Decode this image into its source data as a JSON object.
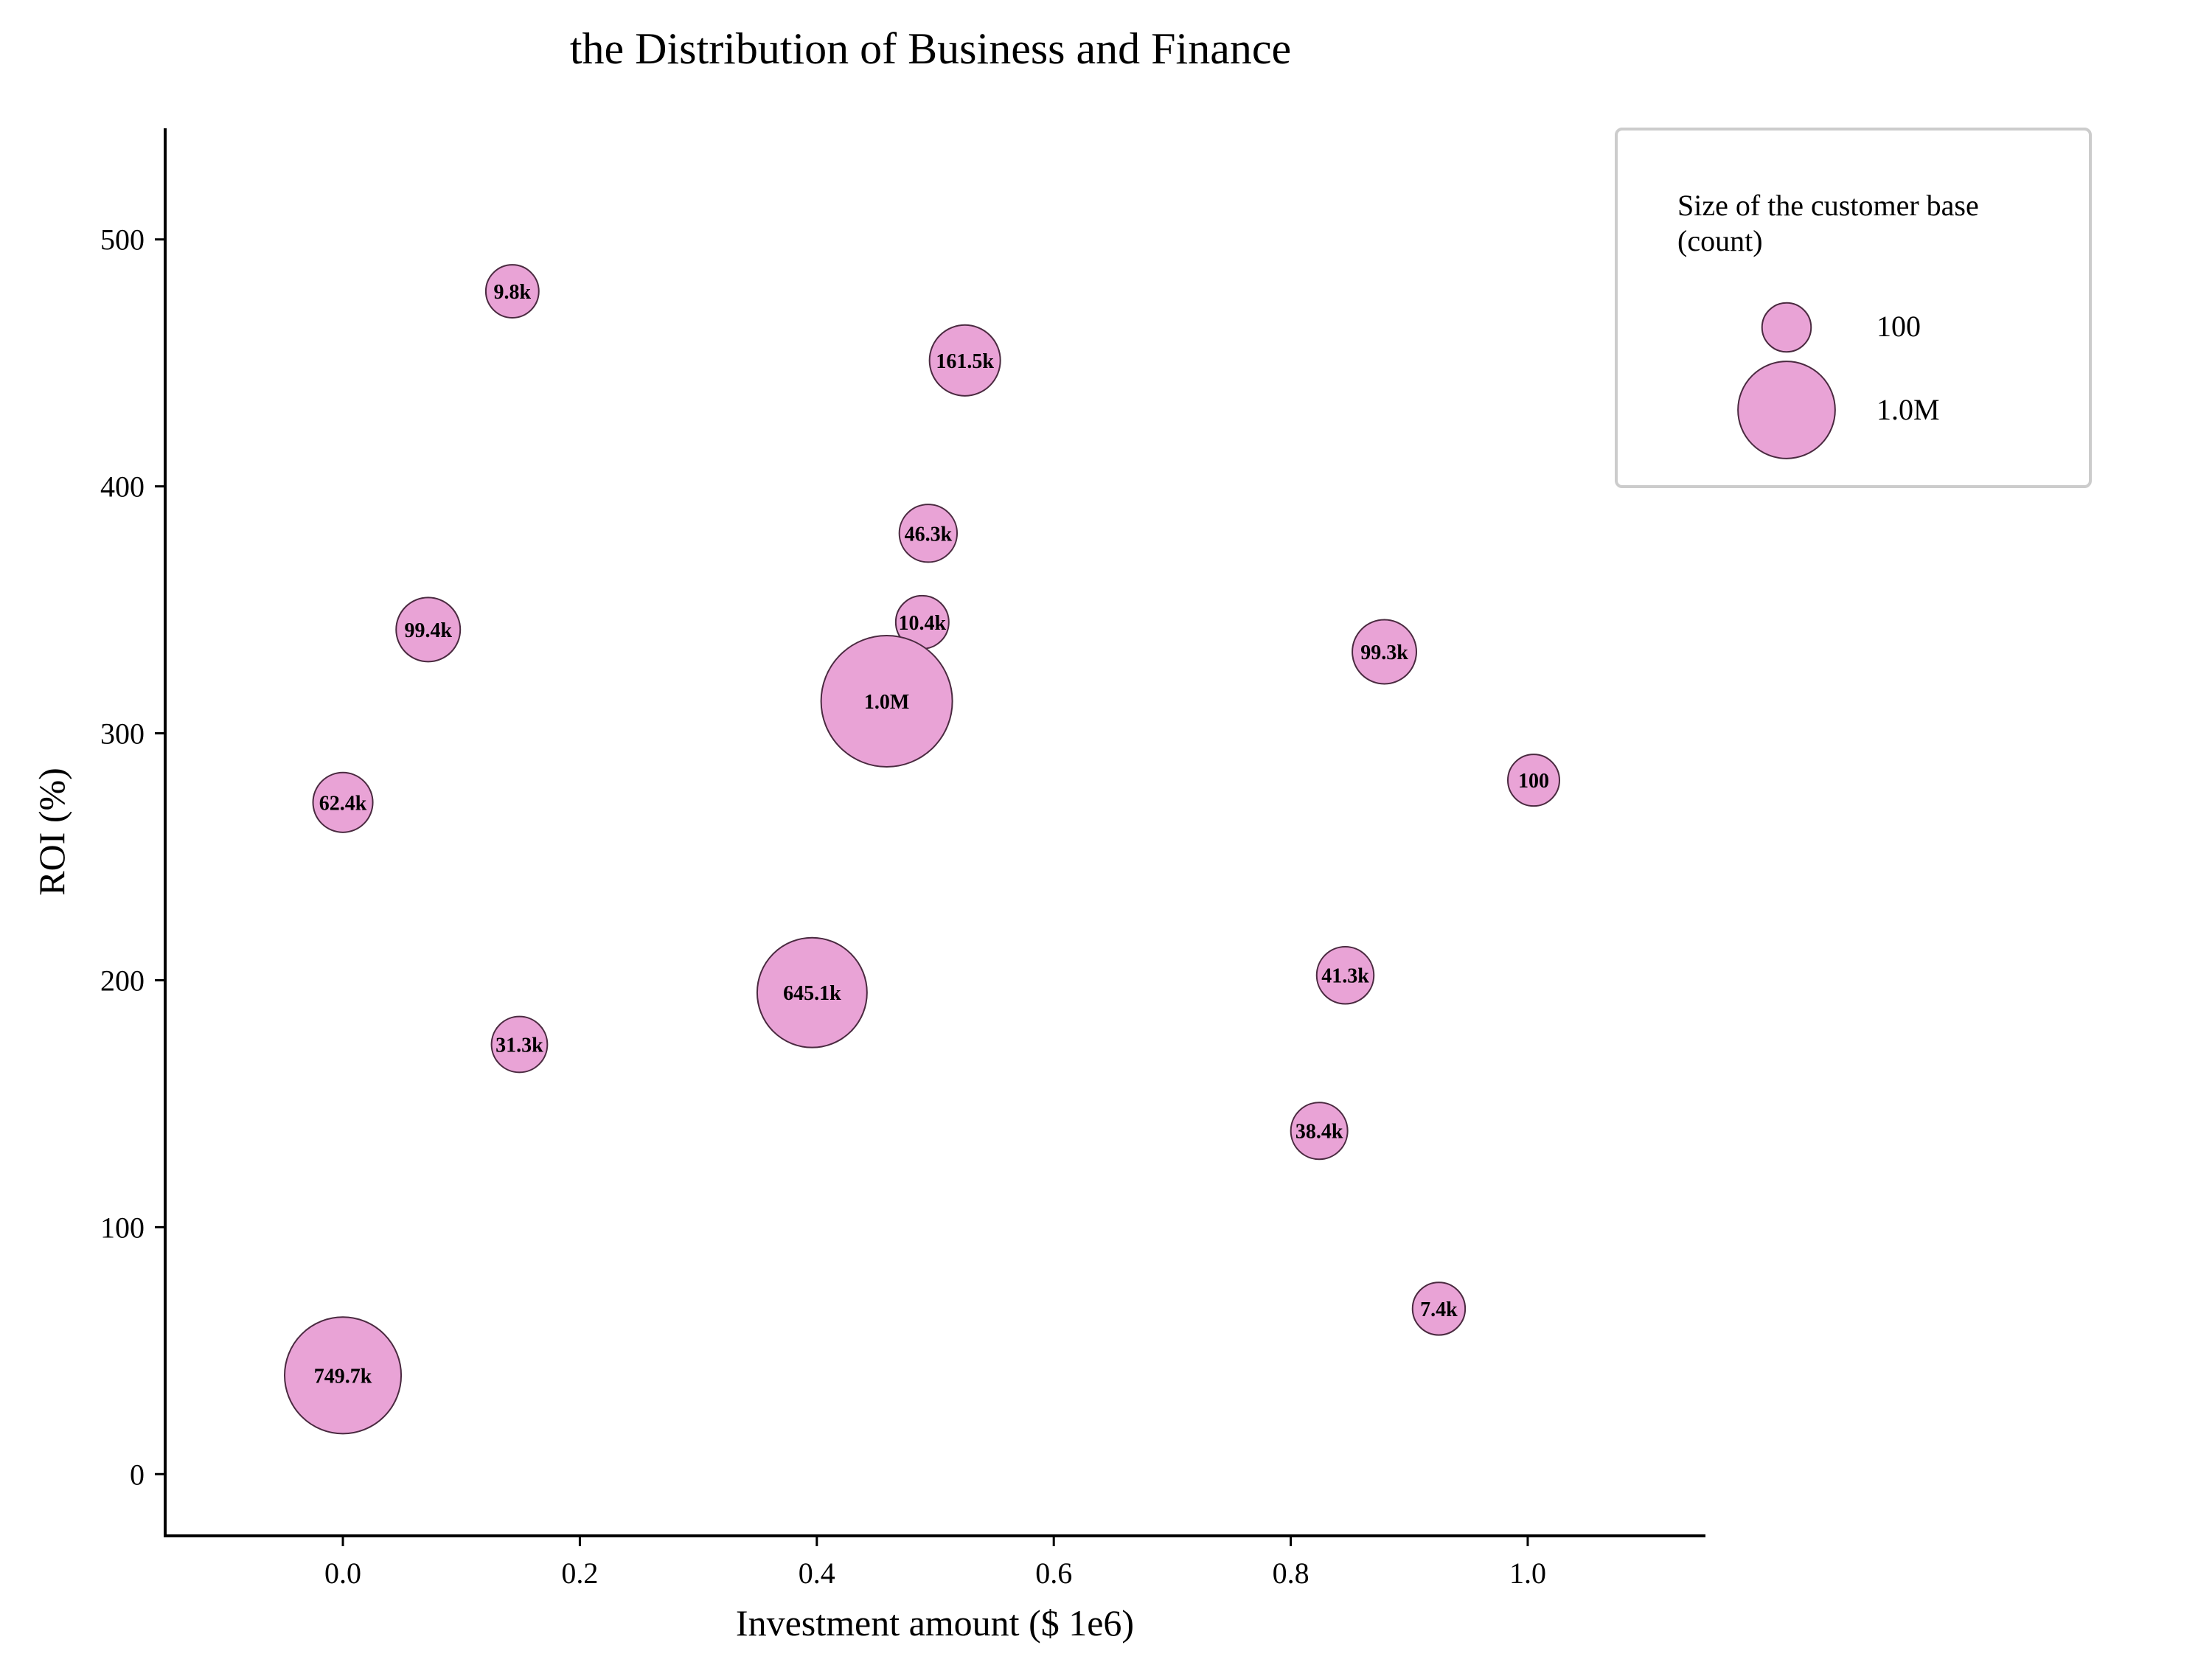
{
  "chart_data": {
    "type": "scatter",
    "title": "the Distribution of Business and Finance",
    "xlabel": "Investment amount ($ 1e6)",
    "ylabel": "ROI (%)",
    "xlim": [
      -0.15,
      1.15
    ],
    "ylim": [
      -25,
      545
    ],
    "x_ticks": [
      0.0,
      0.2,
      0.4,
      0.6,
      0.8,
      1.0
    ],
    "x_tick_labels": [
      "0.0",
      "0.2",
      "0.4",
      "0.6",
      "0.8",
      "1.0"
    ],
    "y_ticks": [
      0,
      100,
      200,
      300,
      400,
      500
    ],
    "y_tick_labels": [
      "0",
      "100",
      "200",
      "300",
      "400",
      "500"
    ],
    "grid": false,
    "size_measure": "Size of the customer base (count)",
    "points": [
      {
        "x": 0.143,
        "y": 479,
        "size": 9800,
        "label": "9.8k"
      },
      {
        "x": 0.525,
        "y": 451,
        "size": 161500,
        "label": "161.5k"
      },
      {
        "x": 0.494,
        "y": 381,
        "size": 46300,
        "label": "46.3k"
      },
      {
        "x": 0.489,
        "y": 345,
        "size": 10400,
        "label": "10.4k"
      },
      {
        "x": 0.072,
        "y": 342,
        "size": 99400,
        "label": "99.4k"
      },
      {
        "x": 0.879,
        "y": 333,
        "size": 99300,
        "label": "99.3k"
      },
      {
        "x": 0.459,
        "y": 313,
        "size": 1000000,
        "label": "1.0M"
      },
      {
        "x": 1.005,
        "y": 281,
        "size": 100,
        "label": "100"
      },
      {
        "x": 0.0,
        "y": 272,
        "size": 62400,
        "label": "62.4k"
      },
      {
        "x": 0.846,
        "y": 202,
        "size": 41300,
        "label": "41.3k"
      },
      {
        "x": 0.396,
        "y": 195,
        "size": 645100,
        "label": "645.1k"
      },
      {
        "x": 0.149,
        "y": 174,
        "size": 31300,
        "label": "31.3k"
      },
      {
        "x": 0.824,
        "y": 139,
        "size": 38400,
        "label": "38.4k"
      },
      {
        "x": 0.925,
        "y": 67,
        "size": 7400,
        "label": "7.4k"
      },
      {
        "x": 0.0,
        "y": 40,
        "size": 749700,
        "label": "749.7k"
      }
    ],
    "legend": {
      "title_lines": [
        "Size of the customer base",
        "(count)"
      ],
      "placement": "top-right",
      "entries": [
        {
          "label": "100",
          "size": 100
        },
        {
          "label": "1.0M",
          "size": 1000000
        }
      ]
    },
    "colors": {
      "bubble_fill": "#e9a3d6",
      "bubble_stroke": "#4a2a40",
      "axis": "#000000",
      "legend_border": "#cccccc"
    }
  }
}
